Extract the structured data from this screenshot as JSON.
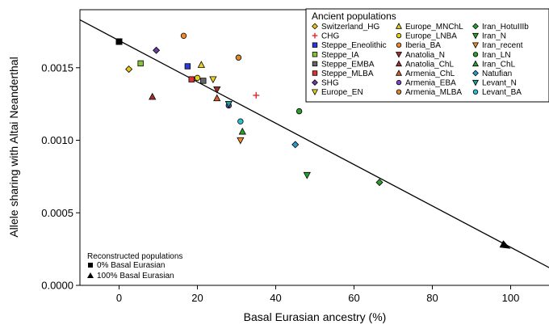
{
  "chart_data": {
    "type": "scatter",
    "xlabel": "Basal Eurasian ancestry (%)",
    "ylabel": "Allele sharing with Altai Neanderthal",
    "xlim": [
      -10,
      110
    ],
    "ylim": [
      0,
      0.0019
    ],
    "xticks": [
      0,
      20,
      40,
      60,
      80,
      100
    ],
    "yticks": [
      0,
      0.0005,
      0.001,
      0.0015
    ],
    "ytick_labels": [
      "0.0000",
      "0.0005",
      "0.0010",
      "0.0015"
    ],
    "grid": false,
    "legend": {
      "title": "Ancient populations",
      "placement": "top-right",
      "columns": [
        [
          "Switzerland_HG",
          "CHG",
          "Steppe_Eneolithic",
          "Steppe_IA",
          "Steppe_EMBA",
          "Steppe_MLBA",
          "SHG",
          "Europe_EN"
        ],
        [
          "Europe_MNChL",
          "Europe_LNBA",
          "Iberia_BA",
          "Anatolia_N",
          "Anatolia_ChL",
          "Armenia_ChL",
          "Armenia_EBA",
          "Armenia_MLBA"
        ],
        [
          "Iran_HotuIIIb",
          "Iran_N",
          "Iran_recent",
          "Iran_LN",
          "Iran_ChL",
          "Natufian",
          "Levant_N",
          "Levant_BA"
        ]
      ]
    },
    "reconstructed_legend": {
      "title": "Reconstructed populations",
      "items": [
        "0% Basal Eurasian",
        "100% Basal Eurasian"
      ]
    },
    "fit_line": {
      "x1": -10,
      "y1": 0.00183,
      "x2": 110,
      "y2": 0.00012
    },
    "arrow": {
      "from": {
        "x": 0,
        "y": 0.00168
      },
      "to": {
        "x": 100,
        "y": 0.000252
      }
    },
    "reconstructed_points": [
      {
        "name": "0% Basal Eurasian",
        "x": 0,
        "y": 0.00168
      },
      {
        "name": "100% Basal Eurasian",
        "x": 100,
        "y": 0.000252
      }
    ],
    "series": [
      {
        "name": "Switzerland_HG",
        "marker": "diamond",
        "color": "#e8c51c",
        "points": [
          [
            2.5,
            0.00149
          ]
        ]
      },
      {
        "name": "CHG",
        "marker": "plus",
        "color": "#e8242a",
        "points": [
          [
            35,
            0.00131
          ]
        ]
      },
      {
        "name": "Steppe_Eneolithic",
        "marker": "square",
        "color": "#2b3ad6",
        "points": [
          [
            17.5,
            0.00151
          ]
        ]
      },
      {
        "name": "Steppe_IA",
        "marker": "square",
        "color": "#86c23a",
        "points": [
          [
            5.5,
            0.00153
          ]
        ]
      },
      {
        "name": "Steppe_EMBA",
        "marker": "square",
        "color": "#666666",
        "points": [
          [
            21.5,
            0.00141
          ]
        ]
      },
      {
        "name": "Steppe_MLBA",
        "marker": "square",
        "color": "#e03030",
        "points": [
          [
            18.5,
            0.00142
          ]
        ]
      },
      {
        "name": "SHG",
        "marker": "diamond",
        "color": "#6a3d9a",
        "points": [
          [
            9.5,
            0.00162
          ]
        ]
      },
      {
        "name": "Europe_EN",
        "marker": "triangle-down",
        "color": "#e8d21c",
        "points": [
          [
            24,
            0.00142
          ]
        ]
      },
      {
        "name": "Europe_MNChL",
        "marker": "triangle-up",
        "color": "#e8d21c",
        "points": [
          [
            21,
            0.00152
          ]
        ]
      },
      {
        "name": "Europe_LNBA",
        "marker": "circle",
        "color": "#e8d21c",
        "points": [
          [
            20,
            0.00143
          ]
        ]
      },
      {
        "name": "Iberia_BA",
        "marker": "circle",
        "color": "#f0892a",
        "points": [
          [
            16.5,
            0.00172
          ]
        ]
      },
      {
        "name": "Anatolia_N",
        "marker": "triangle-down",
        "color": "#a0302c",
        "points": [
          [
            25,
            0.00135
          ]
        ]
      },
      {
        "name": "Anatolia_ChL",
        "marker": "triangle-up",
        "color": "#a0302c",
        "points": [
          [
            8.5,
            0.0013
          ]
        ]
      },
      {
        "name": "Armenia_ChL",
        "marker": "triangle-up",
        "color": "#d9612c",
        "points": [
          [
            25,
            0.00129
          ]
        ]
      },
      {
        "name": "Armenia_EBA",
        "marker": "circle",
        "color": "#7a4ac9",
        "points": [
          [
            28,
            0.00124
          ]
        ]
      },
      {
        "name": "Armenia_MLBA",
        "marker": "circle",
        "color": "#d98a2c",
        "points": [
          [
            30.5,
            0.00157
          ]
        ]
      },
      {
        "name": "Iran_HotuIIIb",
        "marker": "diamond",
        "color": "#2ca02c",
        "points": [
          [
            66.5,
            0.00071
          ]
        ]
      },
      {
        "name": "Iran_N",
        "marker": "triangle-down",
        "color": "#2ca02c",
        "points": [
          [
            48,
            0.00076
          ]
        ]
      },
      {
        "name": "Iran_recent",
        "marker": "triangle-down",
        "color": "#f0892a",
        "points": [
          [
            31,
            0.001
          ]
        ]
      },
      {
        "name": "Iran_LN",
        "marker": "circle",
        "color": "#2ca02c",
        "points": [
          [
            46,
            0.0012
          ]
        ]
      },
      {
        "name": "Iran_ChL",
        "marker": "triangle-up",
        "color": "#2ca02c",
        "points": [
          [
            31.5,
            0.00106
          ]
        ]
      },
      {
        "name": "Natufian",
        "marker": "diamond",
        "color": "#2a9ac9",
        "points": [
          [
            45,
            0.00097
          ]
        ]
      },
      {
        "name": "Levant_N",
        "marker": "triangle-down",
        "color": "#1aa096",
        "points": [
          [
            28,
            0.00125
          ]
        ]
      },
      {
        "name": "Levant_BA",
        "marker": "circle",
        "color": "#2ac0d0",
        "points": [
          [
            31,
            0.00113
          ]
        ]
      }
    ]
  }
}
